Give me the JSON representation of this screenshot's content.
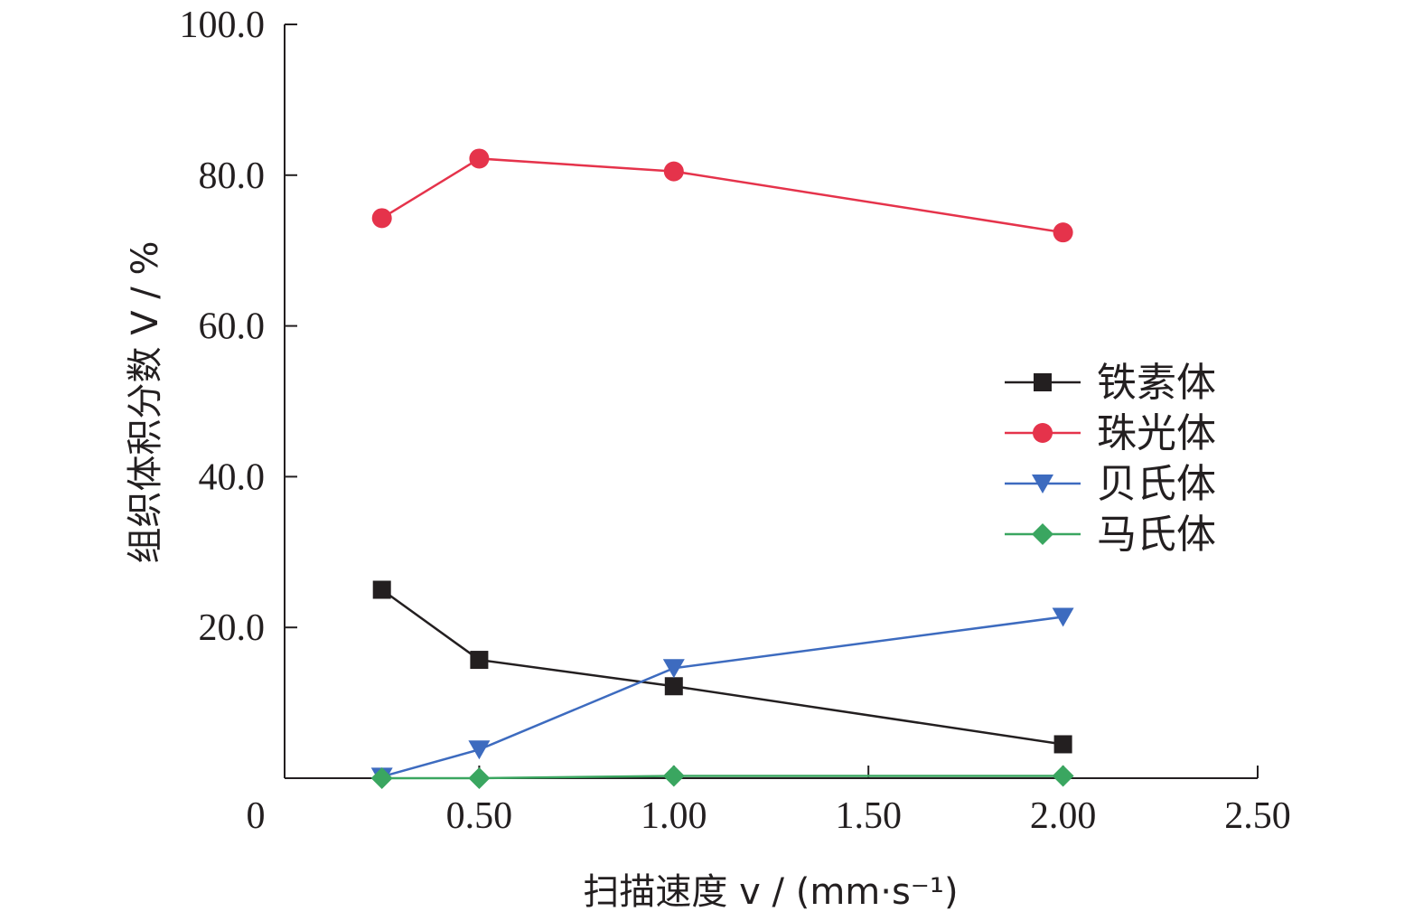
{
  "chart_data": {
    "type": "line",
    "title": "",
    "xlabel": "扫描速度 v / (mm·s⁻¹)",
    "ylabel": "组织体积分数 V / %",
    "xlim": [
      0,
      2.5
    ],
    "ylim": [
      0,
      100
    ],
    "x_ticks": [
      0,
      0.5,
      1.0,
      1.5,
      2.0,
      2.5
    ],
    "x_tick_labels": [
      "0",
      "0.50",
      "1.00",
      "1.50",
      "2.00",
      "2.50"
    ],
    "y_ticks": [
      20,
      40,
      60,
      80,
      100
    ],
    "y_tick_labels": [
      "20.0",
      "40.0",
      "60.0",
      "80.0",
      "100.0"
    ],
    "grid": false,
    "legend_position": "center-right",
    "series": [
      {
        "name": "铁素体",
        "color": "#231f20",
        "marker": "square",
        "x": [
          0.25,
          0.5,
          1.0,
          2.0
        ],
        "values": [
          25.0,
          15.7,
          12.2,
          4.5
        ]
      },
      {
        "name": "珠光体",
        "color": "#e5334b",
        "marker": "circle",
        "x": [
          0.25,
          0.5,
          1.0,
          2.0
        ],
        "values": [
          74.3,
          82.2,
          80.5,
          72.4
        ]
      },
      {
        "name": "贝氏体",
        "color": "#3d6bbf",
        "marker": "triangle-down",
        "x": [
          0.25,
          0.5,
          1.0,
          2.0
        ],
        "values": [
          0.2,
          3.8,
          14.6,
          21.4
        ]
      },
      {
        "name": "马氏体",
        "color": "#3aa660",
        "marker": "diamond",
        "x": [
          0.25,
          0.5,
          1.0,
          2.0
        ],
        "values": [
          0.0,
          0.0,
          0.3,
          0.3
        ]
      }
    ]
  }
}
